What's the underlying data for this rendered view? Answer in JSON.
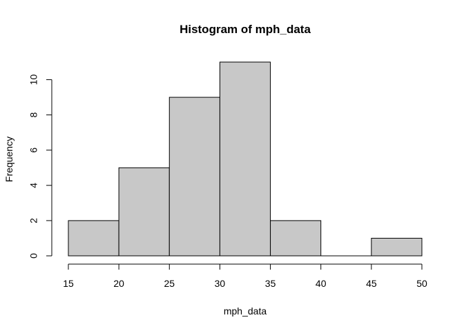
{
  "chart_data": {
    "type": "bar",
    "title": "Histogram of mph_data",
    "xlabel": "mph_data",
    "ylabel": "Frequency",
    "bins": [
      {
        "start": 15,
        "end": 20,
        "count": 2
      },
      {
        "start": 20,
        "end": 25,
        "count": 5
      },
      {
        "start": 25,
        "end": 30,
        "count": 9
      },
      {
        "start": 30,
        "end": 35,
        "count": 11
      },
      {
        "start": 35,
        "end": 40,
        "count": 2
      },
      {
        "start": 40,
        "end": 45,
        "count": 0
      },
      {
        "start": 45,
        "end": 50,
        "count": 1
      }
    ],
    "x_ticks": [
      15,
      20,
      25,
      30,
      35,
      40,
      45,
      50
    ],
    "y_ticks": [
      0,
      2,
      4,
      6,
      8,
      10
    ],
    "xlim": [
      15,
      50
    ],
    "ylim": [
      0,
      11
    ],
    "grid": false,
    "colors": {
      "bar_fill": "#c8c8c8",
      "bar_stroke": "#000000",
      "axis": "#000000"
    }
  }
}
